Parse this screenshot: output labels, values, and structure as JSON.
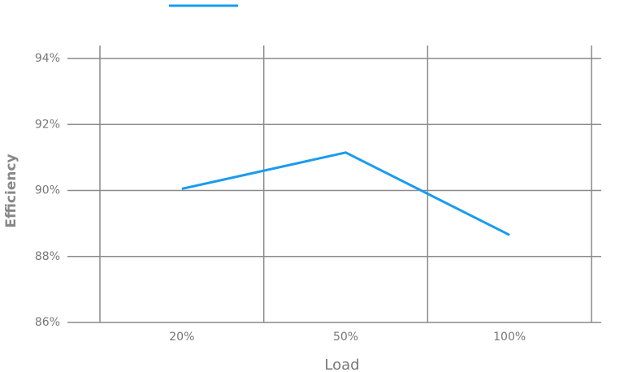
{
  "chart_data": {
    "type": "line",
    "x_label": "Load",
    "y_label": "Efficiency",
    "categories": [
      "20%",
      "50%",
      "100%"
    ],
    "series": [
      {
        "color": "#1a9bf0",
        "values": [
          90.05,
          91.15,
          88.65
        ]
      }
    ],
    "ylim": [
      86,
      94
    ],
    "yticks": [
      {
        "value": 86,
        "label": "86%"
      },
      {
        "value": 88,
        "label": "88%"
      },
      {
        "value": 90,
        "label": "90%"
      },
      {
        "value": 92,
        "label": "92%"
      },
      {
        "value": 94,
        "label": "94%"
      }
    ],
    "grid": true
  }
}
